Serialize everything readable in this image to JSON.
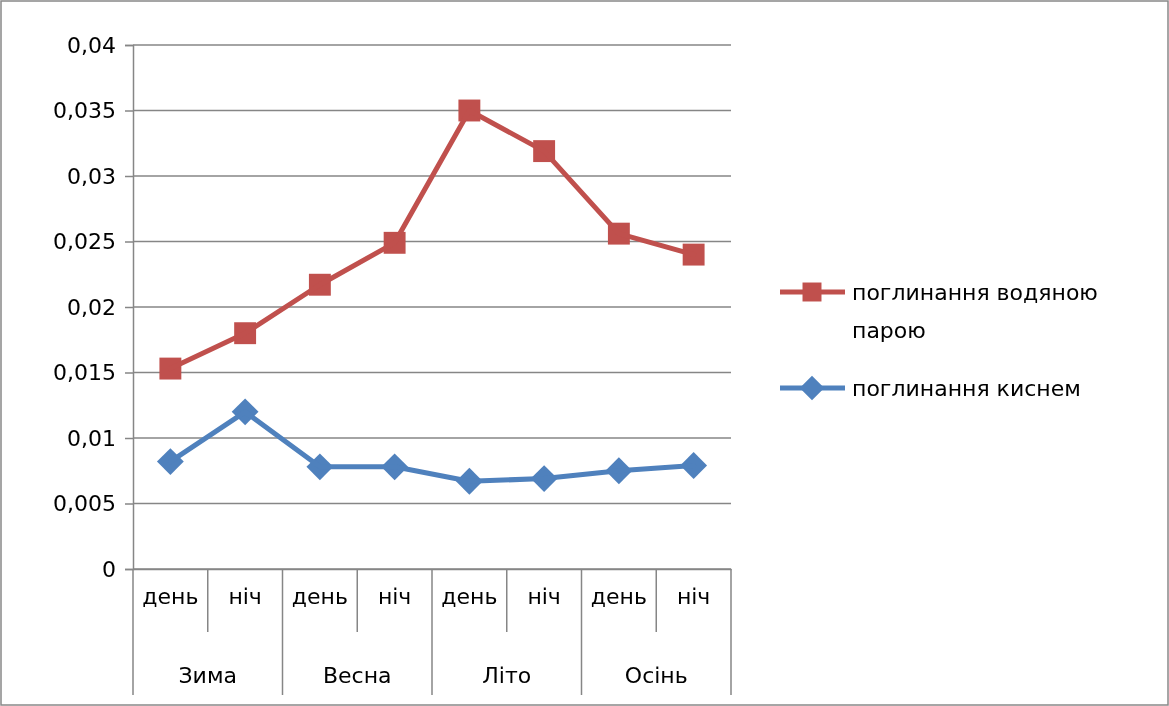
{
  "chart_data": {
    "type": "line",
    "categories": [
      "день",
      "ніч",
      "день",
      "ніч",
      "день",
      "ніч",
      "день",
      "ніч"
    ],
    "annotations": [
      "Зима",
      "Весна",
      "Літо",
      "Осінь"
    ],
    "series": [
      {
        "name": "поглинання водяною парою",
        "color": "#c0504d",
        "marker": "square",
        "values": [
          0.0153,
          0.018,
          0.0217,
          0.0249,
          0.035,
          0.0319,
          0.0256,
          0.024
        ]
      },
      {
        "name": "поглинання киснем",
        "color": "#4f81bd",
        "marker": "diamond",
        "values": [
          0.0082,
          0.012,
          0.0078,
          0.0078,
          0.0067,
          0.0069,
          0.0075,
          0.0079
        ]
      }
    ],
    "ylim": [
      0,
      0.04
    ],
    "yticks": [
      {
        "value": 0,
        "label": "0"
      },
      {
        "value": 0.005,
        "label": "0,005"
      },
      {
        "value": 0.01,
        "label": "0,01"
      },
      {
        "value": 0.015,
        "label": "0,015"
      },
      {
        "value": 0.02,
        "label": "0,02"
      },
      {
        "value": 0.025,
        "label": "0,025"
      },
      {
        "value": 0.03,
        "label": "0,03"
      },
      {
        "value": 0.035,
        "label": "0,035"
      },
      {
        "value": 0.04,
        "label": "0,04"
      }
    ],
    "grid": "y",
    "legend": "right",
    "line_style": "solid"
  }
}
